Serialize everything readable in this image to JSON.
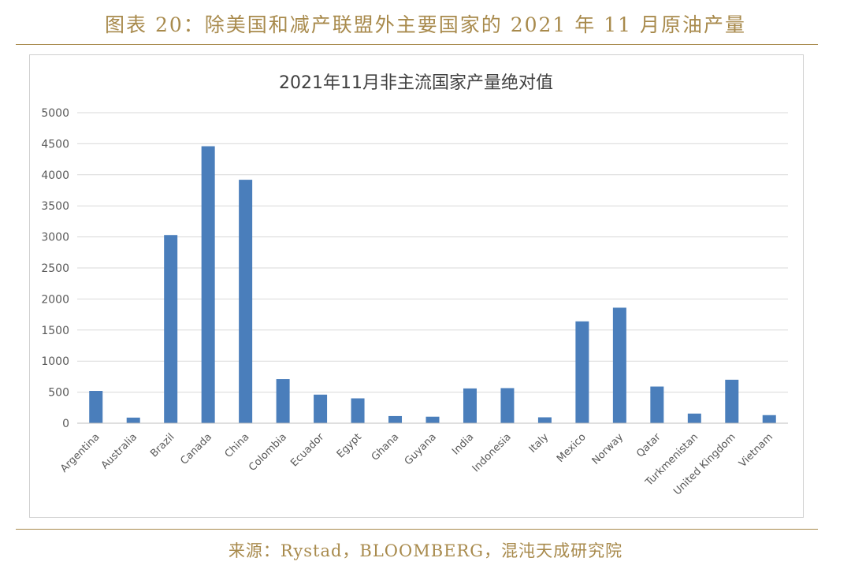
{
  "figure": {
    "caption": "图表 20：除美国和减产联盟外主要国家的 2021 年 11 月原油产量",
    "source": "来源：Rystad，BLOOMBERG，混沌天成研究院"
  },
  "colors": {
    "bar": "#4a7ebb",
    "accent": "#a88a4c",
    "grid": "#d9d9d9",
    "axis_text": "#595959"
  },
  "chart_data": {
    "type": "bar",
    "title": "2021年11月非主流国家产量绝对值",
    "xlabel": "",
    "ylabel": "",
    "ylim": [
      0,
      5000
    ],
    "yticks": [
      0,
      500,
      1000,
      1500,
      2000,
      2500,
      3000,
      3500,
      4000,
      4500,
      5000
    ],
    "grid": true,
    "legend": "none",
    "categories": [
      "Argentina",
      "Australia",
      "Brazil",
      "Canada",
      "China",
      "Colombia",
      "Ecuador",
      "Egypt",
      "Ghana",
      "Guyana",
      "India",
      "Indonesia",
      "Italy",
      "Mexico",
      "Norway",
      "Qatar",
      "Turkmenistan",
      "United Kingdom",
      "Vietnam"
    ],
    "values": [
      520,
      90,
      3030,
      4460,
      3920,
      710,
      460,
      400,
      115,
      105,
      560,
      565,
      95,
      1640,
      1860,
      590,
      155,
      700,
      130
    ]
  }
}
